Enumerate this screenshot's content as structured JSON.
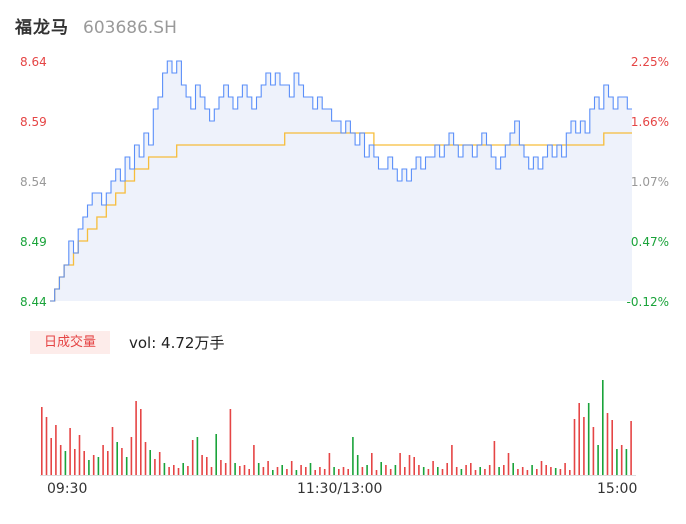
{
  "header": {
    "name": "福龙马",
    "code": "603686.SH"
  },
  "colors": {
    "price": "#5b8ff9",
    "avg": "#f6bd3b",
    "up": "#e54545",
    "down": "#1aa33a",
    "flat": "#999999",
    "area": "#eef2fb"
  },
  "price_axis": {
    "left_labels": [
      {
        "text": "8.64",
        "color": "#e54545"
      },
      {
        "text": "8.59",
        "color": "#e54545"
      },
      {
        "text": "8.54",
        "color": "#999999"
      },
      {
        "text": "8.49",
        "color": "#1aa33a"
      },
      {
        "text": "8.44",
        "color": "#1aa33a"
      }
    ],
    "right_labels": [
      {
        "text": "2.25%",
        "color": "#e54545"
      },
      {
        "text": "1.66%",
        "color": "#e54545"
      },
      {
        "text": "1.07%",
        "color": "#999999"
      },
      {
        "text": "0.47%",
        "color": "#1aa33a"
      },
      {
        "text": "-0.12%",
        "color": "#1aa33a"
      }
    ]
  },
  "volume": {
    "tag": "日成交量",
    "text": "vol: 4.72万手"
  },
  "time_axis": [
    "09:30",
    "11:30/13:00",
    "15:00"
  ],
  "chart_data": {
    "type": "line",
    "title": "",
    "x_range": [
      "09:30",
      "15:00"
    ],
    "ylim": [
      8.44,
      8.64
    ],
    "pct_range": [
      -0.12,
      2.25
    ],
    "series": [
      {
        "values": [
          8.44,
          8.45,
          8.46,
          8.47,
          8.49,
          8.48,
          8.5,
          8.51,
          8.52,
          8.53,
          8.53,
          8.52,
          8.53,
          8.54,
          8.55,
          8.54,
          8.56,
          8.55,
          8.57,
          8.56,
          8.58,
          8.57,
          8.6,
          8.61,
          8.63,
          8.64,
          8.63,
          8.64,
          8.62,
          8.61,
          8.6,
          8.62,
          8.61,
          8.6,
          8.59,
          8.6,
          8.61,
          8.62,
          8.61,
          8.6,
          8.61,
          8.62,
          8.61,
          8.6,
          8.61,
          8.62,
          8.63,
          8.62,
          8.63,
          8.62,
          8.62,
          8.61,
          8.63,
          8.62,
          8.61,
          8.61,
          8.6,
          8.61,
          8.6,
          8.6,
          8.59,
          8.59,
          8.58,
          8.59,
          8.58,
          8.57,
          8.58,
          8.56,
          8.57,
          8.56,
          8.55,
          8.55,
          8.56,
          8.55,
          8.54,
          8.55,
          8.54,
          8.55,
          8.56,
          8.55,
          8.56,
          8.56,
          8.57,
          8.56,
          8.57,
          8.58,
          8.57,
          8.56,
          8.57,
          8.57,
          8.56,
          8.57,
          8.58,
          8.57,
          8.56,
          8.55,
          8.56,
          8.57,
          8.58,
          8.59,
          8.57,
          8.56,
          8.55,
          8.56,
          8.55,
          8.56,
          8.57,
          8.56,
          8.57,
          8.56,
          8.58,
          8.59,
          8.58,
          8.59,
          8.58,
          8.6,
          8.61,
          8.6,
          8.62,
          8.61,
          8.6,
          8.61,
          8.61,
          8.6,
          8.6
        ]
      },
      {
        "values": [
          8.44,
          8.45,
          8.46,
          8.47,
          8.47,
          8.48,
          8.49,
          8.49,
          8.5,
          8.5,
          8.51,
          8.51,
          8.52,
          8.52,
          8.53,
          8.53,
          8.54,
          8.54,
          8.55,
          8.55,
          8.55,
          8.56,
          8.56,
          8.56,
          8.56,
          8.56,
          8.56,
          8.57,
          8.57,
          8.57,
          8.57,
          8.57,
          8.57,
          8.57,
          8.57,
          8.57,
          8.57,
          8.57,
          8.57,
          8.57,
          8.57,
          8.57,
          8.57,
          8.57,
          8.57,
          8.57,
          8.57,
          8.57,
          8.57,
          8.57,
          8.58,
          8.58,
          8.58,
          8.58,
          8.58,
          8.58,
          8.58,
          8.58,
          8.58,
          8.58,
          8.58,
          8.58,
          8.58,
          8.58,
          8.58,
          8.58,
          8.58,
          8.58,
          8.58,
          8.57,
          8.57,
          8.57,
          8.57,
          8.57,
          8.57,
          8.57,
          8.57,
          8.57,
          8.57,
          8.57,
          8.57,
          8.57,
          8.57,
          8.57,
          8.57,
          8.57,
          8.57,
          8.57,
          8.57,
          8.57,
          8.57,
          8.57,
          8.57,
          8.57,
          8.57,
          8.57,
          8.57,
          8.57,
          8.57,
          8.57,
          8.57,
          8.57,
          8.57,
          8.57,
          8.57,
          8.57,
          8.57,
          8.57,
          8.57,
          8.57,
          8.57,
          8.57,
          8.57,
          8.57,
          8.57,
          8.57,
          8.57,
          8.57,
          8.58,
          8.58,
          8.58,
          8.58,
          8.58,
          8.58,
          8.58
        ]
      }
    ],
    "volume_bars": [
      {
        "v": 0.68,
        "d": "up"
      },
      {
        "v": 0.58,
        "d": "up"
      },
      {
        "v": 0.37,
        "d": "up"
      },
      {
        "v": 0.5,
        "d": "up"
      },
      {
        "v": 0.3,
        "d": "up"
      },
      {
        "v": 0.24,
        "d": "down"
      },
      {
        "v": 0.47,
        "d": "up"
      },
      {
        "v": 0.26,
        "d": "up"
      },
      {
        "v": 0.4,
        "d": "up"
      },
      {
        "v": 0.24,
        "d": "up"
      },
      {
        "v": 0.15,
        "d": "down"
      },
      {
        "v": 0.2,
        "d": "up"
      },
      {
        "v": 0.18,
        "d": "down"
      },
      {
        "v": 0.3,
        "d": "up"
      },
      {
        "v": 0.24,
        "d": "up"
      },
      {
        "v": 0.48,
        "d": "up"
      },
      {
        "v": 0.33,
        "d": "down"
      },
      {
        "v": 0.27,
        "d": "up"
      },
      {
        "v": 0.18,
        "d": "down"
      },
      {
        "v": 0.38,
        "d": "up"
      },
      {
        "v": 0.74,
        "d": "up"
      },
      {
        "v": 0.66,
        "d": "up"
      },
      {
        "v": 0.33,
        "d": "up"
      },
      {
        "v": 0.25,
        "d": "down"
      },
      {
        "v": 0.16,
        "d": "up"
      },
      {
        "v": 0.23,
        "d": "up"
      },
      {
        "v": 0.12,
        "d": "down"
      },
      {
        "v": 0.08,
        "d": "up"
      },
      {
        "v": 0.1,
        "d": "up"
      },
      {
        "v": 0.07,
        "d": "up"
      },
      {
        "v": 0.12,
        "d": "down"
      },
      {
        "v": 0.09,
        "d": "up"
      },
      {
        "v": 0.35,
        "d": "up"
      },
      {
        "v": 0.38,
        "d": "down"
      },
      {
        "v": 0.2,
        "d": "up"
      },
      {
        "v": 0.18,
        "d": "up"
      },
      {
        "v": 0.08,
        "d": "up"
      },
      {
        "v": 0.41,
        "d": "down"
      },
      {
        "v": 0.15,
        "d": "up"
      },
      {
        "v": 0.12,
        "d": "up"
      },
      {
        "v": 0.66,
        "d": "up"
      },
      {
        "v": 0.12,
        "d": "down"
      },
      {
        "v": 0.09,
        "d": "up"
      },
      {
        "v": 0.1,
        "d": "up"
      },
      {
        "v": 0.06,
        "d": "up"
      },
      {
        "v": 0.3,
        "d": "up"
      },
      {
        "v": 0.12,
        "d": "down"
      },
      {
        "v": 0.08,
        "d": "up"
      },
      {
        "v": 0.14,
        "d": "up"
      },
      {
        "v": 0.05,
        "d": "down"
      },
      {
        "v": 0.08,
        "d": "up"
      },
      {
        "v": 0.1,
        "d": "down"
      },
      {
        "v": 0.06,
        "d": "up"
      },
      {
        "v": 0.14,
        "d": "up"
      },
      {
        "v": 0.05,
        "d": "down"
      },
      {
        "v": 0.1,
        "d": "up"
      },
      {
        "v": 0.08,
        "d": "up"
      },
      {
        "v": 0.12,
        "d": "down"
      },
      {
        "v": 0.05,
        "d": "up"
      },
      {
        "v": 0.08,
        "d": "up"
      },
      {
        "v": 0.06,
        "d": "up"
      },
      {
        "v": 0.22,
        "d": "up"
      },
      {
        "v": 0.08,
        "d": "down"
      },
      {
        "v": 0.06,
        "d": "up"
      },
      {
        "v": 0.08,
        "d": "up"
      },
      {
        "v": 0.06,
        "d": "up"
      },
      {
        "v": 0.38,
        "d": "down"
      },
      {
        "v": 0.2,
        "d": "down"
      },
      {
        "v": 0.08,
        "d": "up"
      },
      {
        "v": 0.1,
        "d": "down"
      },
      {
        "v": 0.22,
        "d": "up"
      },
      {
        "v": 0.05,
        "d": "up"
      },
      {
        "v": 0.13,
        "d": "down"
      },
      {
        "v": 0.1,
        "d": "up"
      },
      {
        "v": 0.06,
        "d": "up"
      },
      {
        "v": 0.1,
        "d": "down"
      },
      {
        "v": 0.22,
        "d": "up"
      },
      {
        "v": 0.08,
        "d": "up"
      },
      {
        "v": 0.2,
        "d": "up"
      },
      {
        "v": 0.18,
        "d": "up"
      },
      {
        "v": 0.1,
        "d": "up"
      },
      {
        "v": 0.08,
        "d": "down"
      },
      {
        "v": 0.06,
        "d": "up"
      },
      {
        "v": 0.14,
        "d": "up"
      },
      {
        "v": 0.08,
        "d": "down"
      },
      {
        "v": 0.06,
        "d": "up"
      },
      {
        "v": 0.12,
        "d": "up"
      },
      {
        "v": 0.3,
        "d": "up"
      },
      {
        "v": 0.08,
        "d": "up"
      },
      {
        "v": 0.06,
        "d": "down"
      },
      {
        "v": 0.1,
        "d": "up"
      },
      {
        "v": 0.12,
        "d": "up"
      },
      {
        "v": 0.05,
        "d": "up"
      },
      {
        "v": 0.08,
        "d": "down"
      },
      {
        "v": 0.06,
        "d": "up"
      },
      {
        "v": 0.1,
        "d": "up"
      },
      {
        "v": 0.34,
        "d": "up"
      },
      {
        "v": 0.08,
        "d": "down"
      },
      {
        "v": 0.1,
        "d": "up"
      },
      {
        "v": 0.22,
        "d": "up"
      },
      {
        "v": 0.12,
        "d": "down"
      },
      {
        "v": 0.06,
        "d": "up"
      },
      {
        "v": 0.08,
        "d": "up"
      },
      {
        "v": 0.05,
        "d": "up"
      },
      {
        "v": 0.1,
        "d": "down"
      },
      {
        "v": 0.06,
        "d": "up"
      },
      {
        "v": 0.14,
        "d": "up"
      },
      {
        "v": 0.1,
        "d": "up"
      },
      {
        "v": 0.08,
        "d": "up"
      },
      {
        "v": 0.07,
        "d": "down"
      },
      {
        "v": 0.06,
        "d": "up"
      },
      {
        "v": 0.12,
        "d": "up"
      },
      {
        "v": 0.05,
        "d": "up"
      },
      {
        "v": 0.56,
        "d": "up"
      },
      {
        "v": 0.72,
        "d": "up"
      },
      {
        "v": 0.58,
        "d": "up"
      },
      {
        "v": 0.72,
        "d": "down"
      },
      {
        "v": 0.48,
        "d": "up"
      },
      {
        "v": 0.3,
        "d": "down"
      },
      {
        "v": 0.95,
        "d": "down"
      },
      {
        "v": 0.62,
        "d": "up"
      },
      {
        "v": 0.55,
        "d": "up"
      },
      {
        "v": 0.26,
        "d": "down"
      },
      {
        "v": 0.3,
        "d": "up"
      },
      {
        "v": 0.26,
        "d": "down"
      },
      {
        "v": 0.54,
        "d": "up"
      }
    ]
  }
}
